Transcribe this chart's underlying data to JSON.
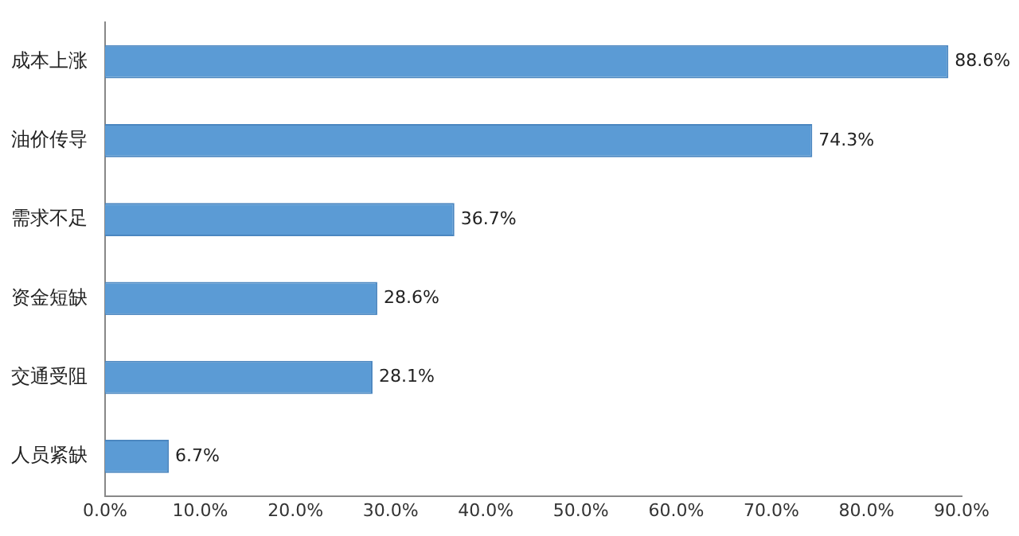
{
  "chart_data": {
    "type": "bar",
    "orientation": "horizontal",
    "categories": [
      "成本上涨",
      "油价传导",
      "需求不足",
      "资金短缺",
      "交通受阻",
      "人员紧缺"
    ],
    "values": [
      88.6,
      74.3,
      36.7,
      28.6,
      28.1,
      6.7
    ],
    "value_labels": [
      "88.6%",
      "74.3%",
      "36.7%",
      "28.6%",
      "28.1%",
      "6.7%"
    ],
    "color": "#5b9bd5",
    "xlim": [
      0,
      90
    ],
    "xticks": [
      {
        "value": 0,
        "label": "0.0%"
      },
      {
        "value": 10,
        "label": "10.0%"
      },
      {
        "value": 20,
        "label": "20.0%"
      },
      {
        "value": 30,
        "label": "30.0%"
      },
      {
        "value": 40,
        "label": "40.0%"
      },
      {
        "value": 50,
        "label": "50.0%"
      },
      {
        "value": 60,
        "label": "60.0%"
      },
      {
        "value": 70,
        "label": "70.0%"
      },
      {
        "value": 80,
        "label": "80.0%"
      },
      {
        "value": 90,
        "label": "90.0%"
      }
    ],
    "grid": false,
    "legend": false
  }
}
